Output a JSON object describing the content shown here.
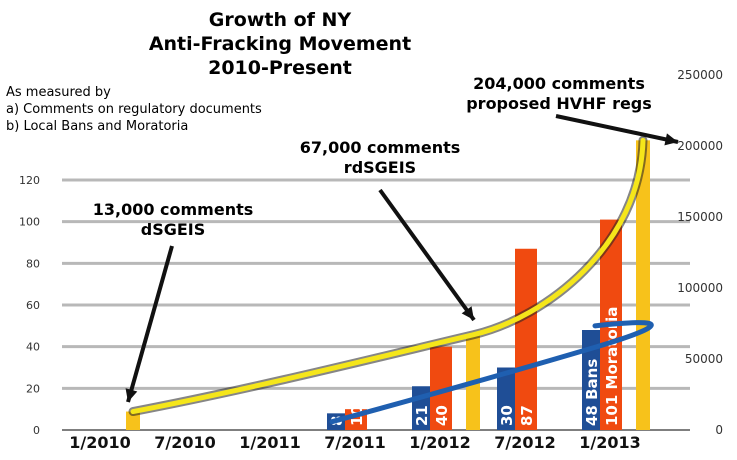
{
  "title_lines": [
    "Growth of NY",
    "Anti-Fracking Movement",
    "2010-Present"
  ],
  "subtitle_lines": [
    "As measured by",
    "a) Comments on regulatory documents",
    "b) Local Bans and Moratoria"
  ],
  "annotations": [
    {
      "line1": "13,000 comments",
      "line2": "dSGEIS"
    },
    {
      "line1": "67,000 comments",
      "line2": "rdSGEIS"
    },
    {
      "line1": "204,000 comments",
      "line2": "proposed HVHF regs"
    }
  ],
  "chart_data": {
    "type": "bar",
    "categories": [
      "1/2010",
      "7/2010",
      "1/2011",
      "7/2011",
      "1/2012",
      "7/2012",
      "1/2013"
    ],
    "left_axis": {
      "ylim": [
        0,
        120
      ],
      "ticks": [
        "0",
        "20",
        "40",
        "60",
        "80",
        "100",
        "120"
      ]
    },
    "right_axis": {
      "ylim": [
        0,
        250000
      ],
      "ticks": [
        "0",
        "50000",
        "100000",
        "150000",
        "200000",
        "250000"
      ]
    },
    "series": [
      {
        "name": "Bans",
        "axis": "left",
        "color": "#1f4e96",
        "points": [
          {
            "x": "7/2011",
            "y": 8
          },
          {
            "x": "1/2012",
            "y": 21
          },
          {
            "x": "7/2012",
            "y": 30
          },
          {
            "x": "1/2013",
            "y": 48
          }
        ],
        "labels": [
          "8",
          "21",
          "30",
          "48 Bans"
        ]
      },
      {
        "name": "Moratoria",
        "axis": "left",
        "color": "#f04a10",
        "points": [
          {
            "x": "7/2011",
            "y": 10
          },
          {
            "x": "1/2012",
            "y": 40
          },
          {
            "x": "7/2012",
            "y": 87
          },
          {
            "x": "1/2013",
            "y": 101
          }
        ],
        "labels": [
          "10",
          "40",
          "87",
          "101 Moratoria"
        ]
      },
      {
        "name": "Comments",
        "axis": "right",
        "color": "#f7c21b",
        "points": [
          {
            "x": "1/2010",
            "y": 13000
          },
          {
            "x": "1/2012",
            "y": 67000
          },
          {
            "x": "1/2013",
            "y": 204000
          }
        ]
      }
    ],
    "trend_colors": {
      "comments": "#f5e61a",
      "bans": "#1f5fb0"
    },
    "grid": true
  }
}
